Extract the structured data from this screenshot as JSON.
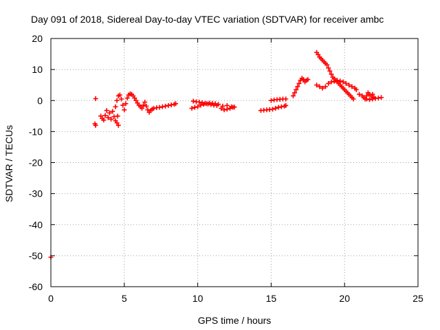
{
  "chart_data": {
    "type": "scatter",
    "title": "Day 091 of 2018, Sidereal Day-to-day VTEC variation (SDTVAR) for receiver ambc",
    "xlabel": "GPS time / hours",
    "ylabel": "SDTVAR / TECUs",
    "xlim": [
      0,
      25
    ],
    "ylim": [
      -60,
      20
    ],
    "x_ticks": [
      0,
      5,
      10,
      15,
      20,
      25
    ],
    "y_ticks": [
      -60,
      -50,
      -40,
      -30,
      -20,
      -10,
      0,
      10,
      20
    ],
    "x_tick_labels": [
      "0",
      "5",
      "10",
      "15",
      "20",
      "25"
    ],
    "y_tick_labels": [
      "-60",
      "-50",
      "-40",
      "-30",
      "-20",
      "-10",
      "0",
      "10",
      "20"
    ],
    "grid": true,
    "marker": "+",
    "color": "#ff0000",
    "series": [
      {
        "name": "SDTVAR",
        "points": [
          [
            0.0,
            -50.5
          ],
          [
            3.05,
            0.6
          ],
          [
            3.0,
            -7.5
          ],
          [
            3.05,
            -8.0
          ],
          [
            3.4,
            -5.0
          ],
          [
            3.5,
            -5.8
          ],
          [
            3.6,
            -6.3
          ],
          [
            3.7,
            -4.8
          ],
          [
            3.8,
            -3.2
          ],
          [
            3.9,
            -5.5
          ],
          [
            4.0,
            -4.0
          ],
          [
            4.1,
            -6.0
          ],
          [
            4.2,
            -3.5
          ],
          [
            4.3,
            -5.2
          ],
          [
            4.4,
            -6.5
          ],
          [
            4.5,
            -7.2
          ],
          [
            4.6,
            -8.0
          ],
          [
            4.55,
            -5.0
          ],
          [
            4.4,
            -2.0
          ],
          [
            4.5,
            0.0
          ],
          [
            4.6,
            1.5
          ],
          [
            4.7,
            1.8
          ],
          [
            4.8,
            0.5
          ],
          [
            4.9,
            -1.5
          ],
          [
            5.0,
            -3.0
          ],
          [
            5.1,
            -1.0
          ],
          [
            5.2,
            0.8
          ],
          [
            5.3,
            1.8
          ],
          [
            5.4,
            2.2
          ],
          [
            5.5,
            2.0
          ],
          [
            5.6,
            1.5
          ],
          [
            5.7,
            0.8
          ],
          [
            5.8,
            0.0
          ],
          [
            5.9,
            -0.8
          ],
          [
            6.0,
            -1.5
          ],
          [
            6.1,
            -2.0
          ],
          [
            6.2,
            -2.5
          ],
          [
            6.3,
            -1.5
          ],
          [
            6.4,
            -0.5
          ],
          [
            6.5,
            -1.8
          ],
          [
            6.6,
            -3.0
          ],
          [
            6.7,
            -3.8
          ],
          [
            6.8,
            -3.2
          ],
          [
            6.9,
            -2.8
          ],
          [
            7.0,
            -2.5
          ],
          [
            7.2,
            -2.3
          ],
          [
            7.4,
            -2.2
          ],
          [
            7.6,
            -2.0
          ],
          [
            7.8,
            -1.8
          ],
          [
            8.0,
            -1.6
          ],
          [
            8.2,
            -1.4
          ],
          [
            8.4,
            -1.2
          ],
          [
            8.5,
            -1.0
          ],
          [
            9.6,
            -2.5
          ],
          [
            9.8,
            -2.2
          ],
          [
            10.0,
            -2.0
          ],
          [
            10.2,
            -1.5
          ],
          [
            10.4,
            -1.2
          ],
          [
            10.6,
            -1.0
          ],
          [
            10.8,
            -0.8
          ],
          [
            11.0,
            -0.9
          ],
          [
            11.2,
            -1.0
          ],
          [
            11.4,
            -1.2
          ],
          [
            9.7,
            -0.2
          ],
          [
            9.9,
            -0.4
          ],
          [
            10.1,
            -0.5
          ],
          [
            10.3,
            -0.7
          ],
          [
            10.5,
            -0.9
          ],
          [
            10.7,
            -1.1
          ],
          [
            10.9,
            -1.3
          ],
          [
            11.1,
            -1.5
          ],
          [
            11.3,
            -1.6
          ],
          [
            11.6,
            -2.5
          ],
          [
            11.8,
            -3.0
          ],
          [
            12.0,
            -2.8
          ],
          [
            12.2,
            -2.5
          ],
          [
            12.4,
            -2.2
          ],
          [
            11.7,
            -1.8
          ],
          [
            12.0,
            -1.6
          ],
          [
            12.3,
            -2.0
          ],
          [
            12.5,
            -2.1
          ],
          [
            14.3,
            -3.2
          ],
          [
            14.5,
            -3.1
          ],
          [
            14.7,
            -3.0
          ],
          [
            14.9,
            -2.9
          ],
          [
            15.1,
            -2.8
          ],
          [
            15.3,
            -2.5
          ],
          [
            15.5,
            -2.2
          ],
          [
            15.7,
            -2.0
          ],
          [
            15.9,
            -1.8
          ],
          [
            16.0,
            -1.6
          ],
          [
            15.0,
            0.0
          ],
          [
            15.2,
            0.2
          ],
          [
            15.4,
            0.3
          ],
          [
            15.6,
            0.4
          ],
          [
            15.8,
            0.5
          ],
          [
            16.0,
            0.5
          ],
          [
            16.5,
            1.5
          ],
          [
            16.6,
            2.5
          ],
          [
            16.7,
            3.5
          ],
          [
            16.8,
            4.5
          ],
          [
            16.9,
            5.5
          ],
          [
            17.0,
            6.5
          ],
          [
            17.1,
            7.2
          ],
          [
            17.2,
            6.8
          ],
          [
            17.3,
            6.0
          ],
          [
            17.4,
            6.5
          ],
          [
            17.5,
            6.8
          ],
          [
            18.1,
            15.5
          ],
          [
            18.2,
            14.8
          ],
          [
            18.3,
            14.0
          ],
          [
            18.4,
            13.5
          ],
          [
            18.5,
            13.0
          ],
          [
            18.6,
            12.5
          ],
          [
            18.7,
            12.0
          ],
          [
            18.8,
            11.5
          ],
          [
            18.9,
            10.5
          ],
          [
            19.0,
            9.5
          ],
          [
            19.1,
            8.5
          ],
          [
            19.2,
            7.5
          ],
          [
            19.3,
            7.0
          ],
          [
            19.4,
            6.5
          ],
          [
            19.5,
            6.0
          ],
          [
            19.6,
            5.5
          ],
          [
            19.7,
            5.0
          ],
          [
            19.8,
            4.5
          ],
          [
            19.9,
            4.0
          ],
          [
            20.0,
            3.5
          ],
          [
            20.1,
            3.0
          ],
          [
            20.2,
            2.5
          ],
          [
            20.3,
            2.0
          ],
          [
            20.4,
            1.5
          ],
          [
            20.5,
            1.0
          ],
          [
            20.6,
            0.5
          ],
          [
            18.1,
            5.0
          ],
          [
            18.3,
            4.5
          ],
          [
            18.5,
            4.0
          ],
          [
            18.7,
            4.5
          ],
          [
            18.9,
            5.5
          ],
          [
            19.1,
            6.0
          ],
          [
            19.3,
            6.2
          ],
          [
            19.5,
            6.5
          ],
          [
            19.7,
            6.3
          ],
          [
            19.9,
            6.0
          ],
          [
            20.1,
            5.5
          ],
          [
            20.3,
            5.0
          ],
          [
            20.5,
            4.5
          ],
          [
            20.7,
            4.0
          ],
          [
            20.8,
            3.5
          ],
          [
            21.0,
            2.0
          ],
          [
            21.2,
            1.5
          ],
          [
            21.3,
            1.0
          ],
          [
            21.4,
            0.5
          ],
          [
            21.5,
            1.5
          ],
          [
            21.6,
            2.5
          ],
          [
            21.7,
            2.0
          ],
          [
            21.8,
            1.5
          ],
          [
            21.9,
            2.0
          ],
          [
            22.0,
            1.0
          ],
          [
            21.5,
            0.5
          ],
          [
            21.7,
            0.3
          ],
          [
            21.9,
            0.5
          ],
          [
            22.1,
            0.7
          ],
          [
            22.3,
            0.8
          ],
          [
            22.5,
            1.0
          ]
        ]
      }
    ]
  }
}
